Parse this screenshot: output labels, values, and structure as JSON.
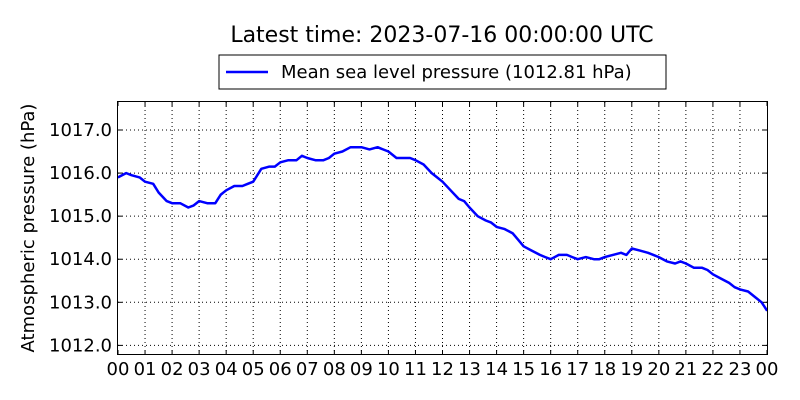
{
  "chart_data": {
    "type": "line",
    "title": "Latest time: 2023-07-16 00:00:00 UTC",
    "ylabel": "Atmospheric pressure (hPa)",
    "xlabel": "",
    "xlim": [
      0,
      24
    ],
    "ylim": [
      1011.8,
      1017.65
    ],
    "grid": true,
    "legend_position": "top-center",
    "x_tick_labels": [
      "00",
      "01",
      "02",
      "03",
      "04",
      "05",
      "06",
      "07",
      "08",
      "09",
      "10",
      "11",
      "12",
      "13",
      "14",
      "15",
      "16",
      "17",
      "18",
      "19",
      "20",
      "21",
      "22",
      "23",
      "00"
    ],
    "y_ticks": [
      1012.0,
      1013.0,
      1014.0,
      1015.0,
      1016.0,
      1017.0
    ],
    "y_tick_labels": [
      "1012.0",
      "1013.0",
      "1014.0",
      "1015.0",
      "1016.0",
      "1017.0"
    ],
    "series": [
      {
        "name": "Mean sea level pressure (1012.81 hPa)",
        "color": "#0000ff",
        "x": [
          0,
          0.3,
          0.5,
          0.8,
          1.0,
          1.3,
          1.5,
          1.8,
          2.0,
          2.3,
          2.6,
          2.8,
          3.0,
          3.3,
          3.6,
          3.8,
          4.0,
          4.3,
          4.6,
          4.8,
          5.0,
          5.3,
          5.6,
          5.8,
          6.0,
          6.3,
          6.6,
          6.8,
          7.0,
          7.3,
          7.6,
          7.8,
          8.0,
          8.3,
          8.6,
          8.8,
          9.0,
          9.3,
          9.6,
          9.8,
          10.0,
          10.3,
          10.6,
          10.8,
          11.0,
          11.3,
          11.6,
          11.8,
          12.0,
          12.3,
          12.6,
          12.8,
          13.0,
          13.3,
          13.6,
          13.8,
          14.0,
          14.3,
          14.6,
          14.8,
          15.0,
          15.3,
          15.6,
          15.8,
          16.0,
          16.3,
          16.6,
          16.8,
          17.0,
          17.3,
          17.6,
          17.8,
          18.0,
          18.3,
          18.6,
          18.8,
          19.0,
          19.3,
          19.6,
          19.8,
          20.0,
          20.3,
          20.6,
          20.8,
          21.0,
          21.3,
          21.6,
          21.8,
          22.0,
          22.3,
          22.6,
          22.8,
          23.0,
          23.3,
          23.6,
          23.8,
          24.0
        ],
        "y": [
          1015.9,
          1016.0,
          1015.95,
          1015.9,
          1015.8,
          1015.75,
          1015.55,
          1015.35,
          1015.3,
          1015.3,
          1015.2,
          1015.25,
          1015.35,
          1015.3,
          1015.3,
          1015.5,
          1015.6,
          1015.7,
          1015.7,
          1015.75,
          1015.8,
          1016.1,
          1016.15,
          1016.15,
          1016.25,
          1016.3,
          1016.3,
          1016.4,
          1016.35,
          1016.3,
          1016.3,
          1016.35,
          1016.45,
          1016.5,
          1016.6,
          1016.6,
          1016.6,
          1016.55,
          1016.6,
          1016.55,
          1016.5,
          1016.35,
          1016.35,
          1016.35,
          1016.3,
          1016.2,
          1016.0,
          1015.9,
          1015.8,
          1015.6,
          1015.4,
          1015.35,
          1015.2,
          1015.0,
          1014.9,
          1014.85,
          1014.75,
          1014.7,
          1014.6,
          1014.45,
          1014.3,
          1014.2,
          1014.1,
          1014.05,
          1014.0,
          1014.1,
          1014.1,
          1014.05,
          1014.0,
          1014.05,
          1014.0,
          1014.0,
          1014.05,
          1014.1,
          1014.15,
          1014.1,
          1014.25,
          1014.2,
          1014.15,
          1014.1,
          1014.05,
          1013.95,
          1013.9,
          1013.95,
          1013.9,
          1013.8,
          1013.8,
          1013.75,
          1013.65,
          1013.55,
          1013.45,
          1013.35,
          1013.3,
          1013.25,
          1013.1,
          1013.0,
          1012.81
        ]
      }
    ]
  }
}
